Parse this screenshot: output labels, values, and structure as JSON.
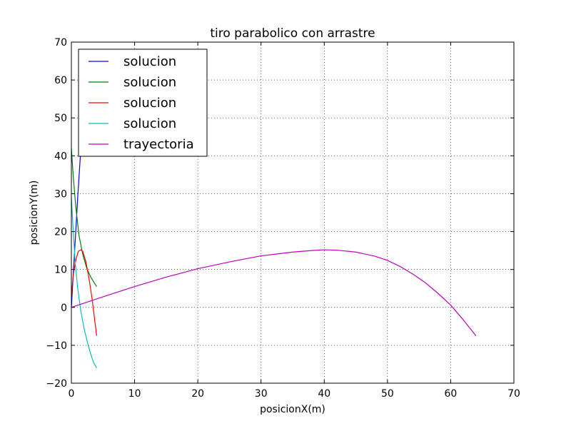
{
  "chart_data": {
    "type": "line",
    "title": "tiro parabolico con arrastre",
    "xlabel": "posicionX(m)",
    "ylabel": "posicionY(m)",
    "xlim": [
      0,
      70
    ],
    "ylim": [
      -20,
      70
    ],
    "xticks": [
      0,
      10,
      20,
      30,
      40,
      50,
      60,
      70
    ],
    "yticks": [
      -20,
      -10,
      0,
      10,
      20,
      30,
      40,
      50,
      60,
      70
    ],
    "xtick_labels": [
      "0",
      "10",
      "20",
      "30",
      "40",
      "50",
      "60",
      "70"
    ],
    "ytick_labels": [
      "−20",
      "−10",
      "0",
      "10",
      "20",
      "30",
      "40",
      "50",
      "60",
      "70"
    ],
    "grid": true,
    "legend_position": "top-left",
    "series": [
      {
        "name": "solucion",
        "color": "#0000ff",
        "x": [
          0.0,
          0.5,
          1.0,
          1.5
        ],
        "y": [
          0.0,
          14.5,
          29.0,
          42.0
        ]
      },
      {
        "name": "solucion",
        "color": "#008000",
        "x": [
          0.0,
          0.3,
          0.7,
          1.2,
          1.8,
          2.4,
          3.0,
          3.5,
          4.0
        ],
        "y": [
          42.0,
          34.5,
          26.5,
          19.0,
          14.0,
          10.5,
          8.2,
          6.8,
          5.5
        ]
      },
      {
        "name": "solucion",
        "color": "#ff0000",
        "x": [
          0.0,
          0.3,
          0.7,
          1.1,
          1.5,
          1.8,
          2.3,
          2.8,
          3.3,
          3.7,
          4.0
        ],
        "y": [
          3.0,
          8.5,
          12.5,
          14.8,
          15.2,
          14.8,
          12.0,
          7.5,
          2.0,
          -3.5,
          -7.5
        ]
      },
      {
        "name": "solucion",
        "color": "#00bfbf",
        "x": [
          0.0,
          0.3,
          0.6,
          1.0,
          1.5,
          2.0,
          2.5,
          3.0,
          3.5,
          4.0
        ],
        "y": [
          29.0,
          20.0,
          12.0,
          5.0,
          -1.0,
          -5.5,
          -9.0,
          -12.0,
          -14.5,
          -16.0
        ]
      },
      {
        "name": "trayectoria",
        "color": "#bf00bf",
        "x": [
          0,
          5,
          10,
          15,
          20,
          25,
          30,
          35,
          38,
          40,
          42,
          45,
          48,
          50,
          52,
          54,
          56,
          58,
          60,
          62,
          64
        ],
        "y": [
          0,
          2.8,
          5.5,
          8.0,
          10.2,
          12.0,
          13.6,
          14.6,
          15.0,
          15.2,
          15.1,
          14.6,
          13.5,
          12.4,
          10.8,
          8.8,
          6.5,
          3.7,
          0.6,
          -3.3,
          -7.5
        ]
      }
    ]
  }
}
